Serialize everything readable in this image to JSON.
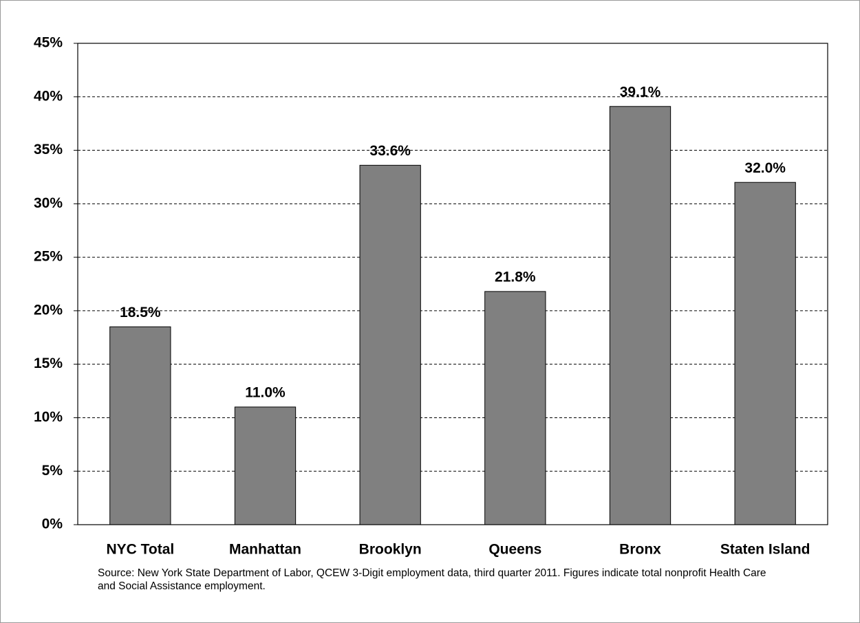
{
  "chart_data": {
    "type": "bar",
    "categories": [
      "NYC Total",
      "Manhattan",
      "Brooklyn",
      "Queens",
      "Bronx",
      "Staten Island"
    ],
    "values": [
      18.5,
      11.0,
      33.6,
      21.8,
      39.1,
      32.0
    ],
    "value_labels": [
      "18.5%",
      "11.0%",
      "33.6%",
      "21.8%",
      "39.1%",
      "32.0%"
    ],
    "color": "#808080",
    "ylim": [
      0,
      45
    ],
    "yticks": [
      {
        "value": 0,
        "label": "0%"
      },
      {
        "value": 5,
        "label": "5%"
      },
      {
        "value": 10,
        "label": "10%"
      },
      {
        "value": 15,
        "label": "15%"
      },
      {
        "value": 20,
        "label": "20%"
      },
      {
        "value": 25,
        "label": "25%"
      },
      {
        "value": 30,
        "label": "30%"
      },
      {
        "value": 35,
        "label": "35%"
      },
      {
        "value": 40,
        "label": "40%"
      },
      {
        "value": 45,
        "label": "45%"
      }
    ],
    "grid": true,
    "source": "Source: New York State Department of Labor, QCEW 3-Digit employment data, third quarter 2011. Figures indicate total nonprofit Health Care and Social Assistance employment."
  }
}
